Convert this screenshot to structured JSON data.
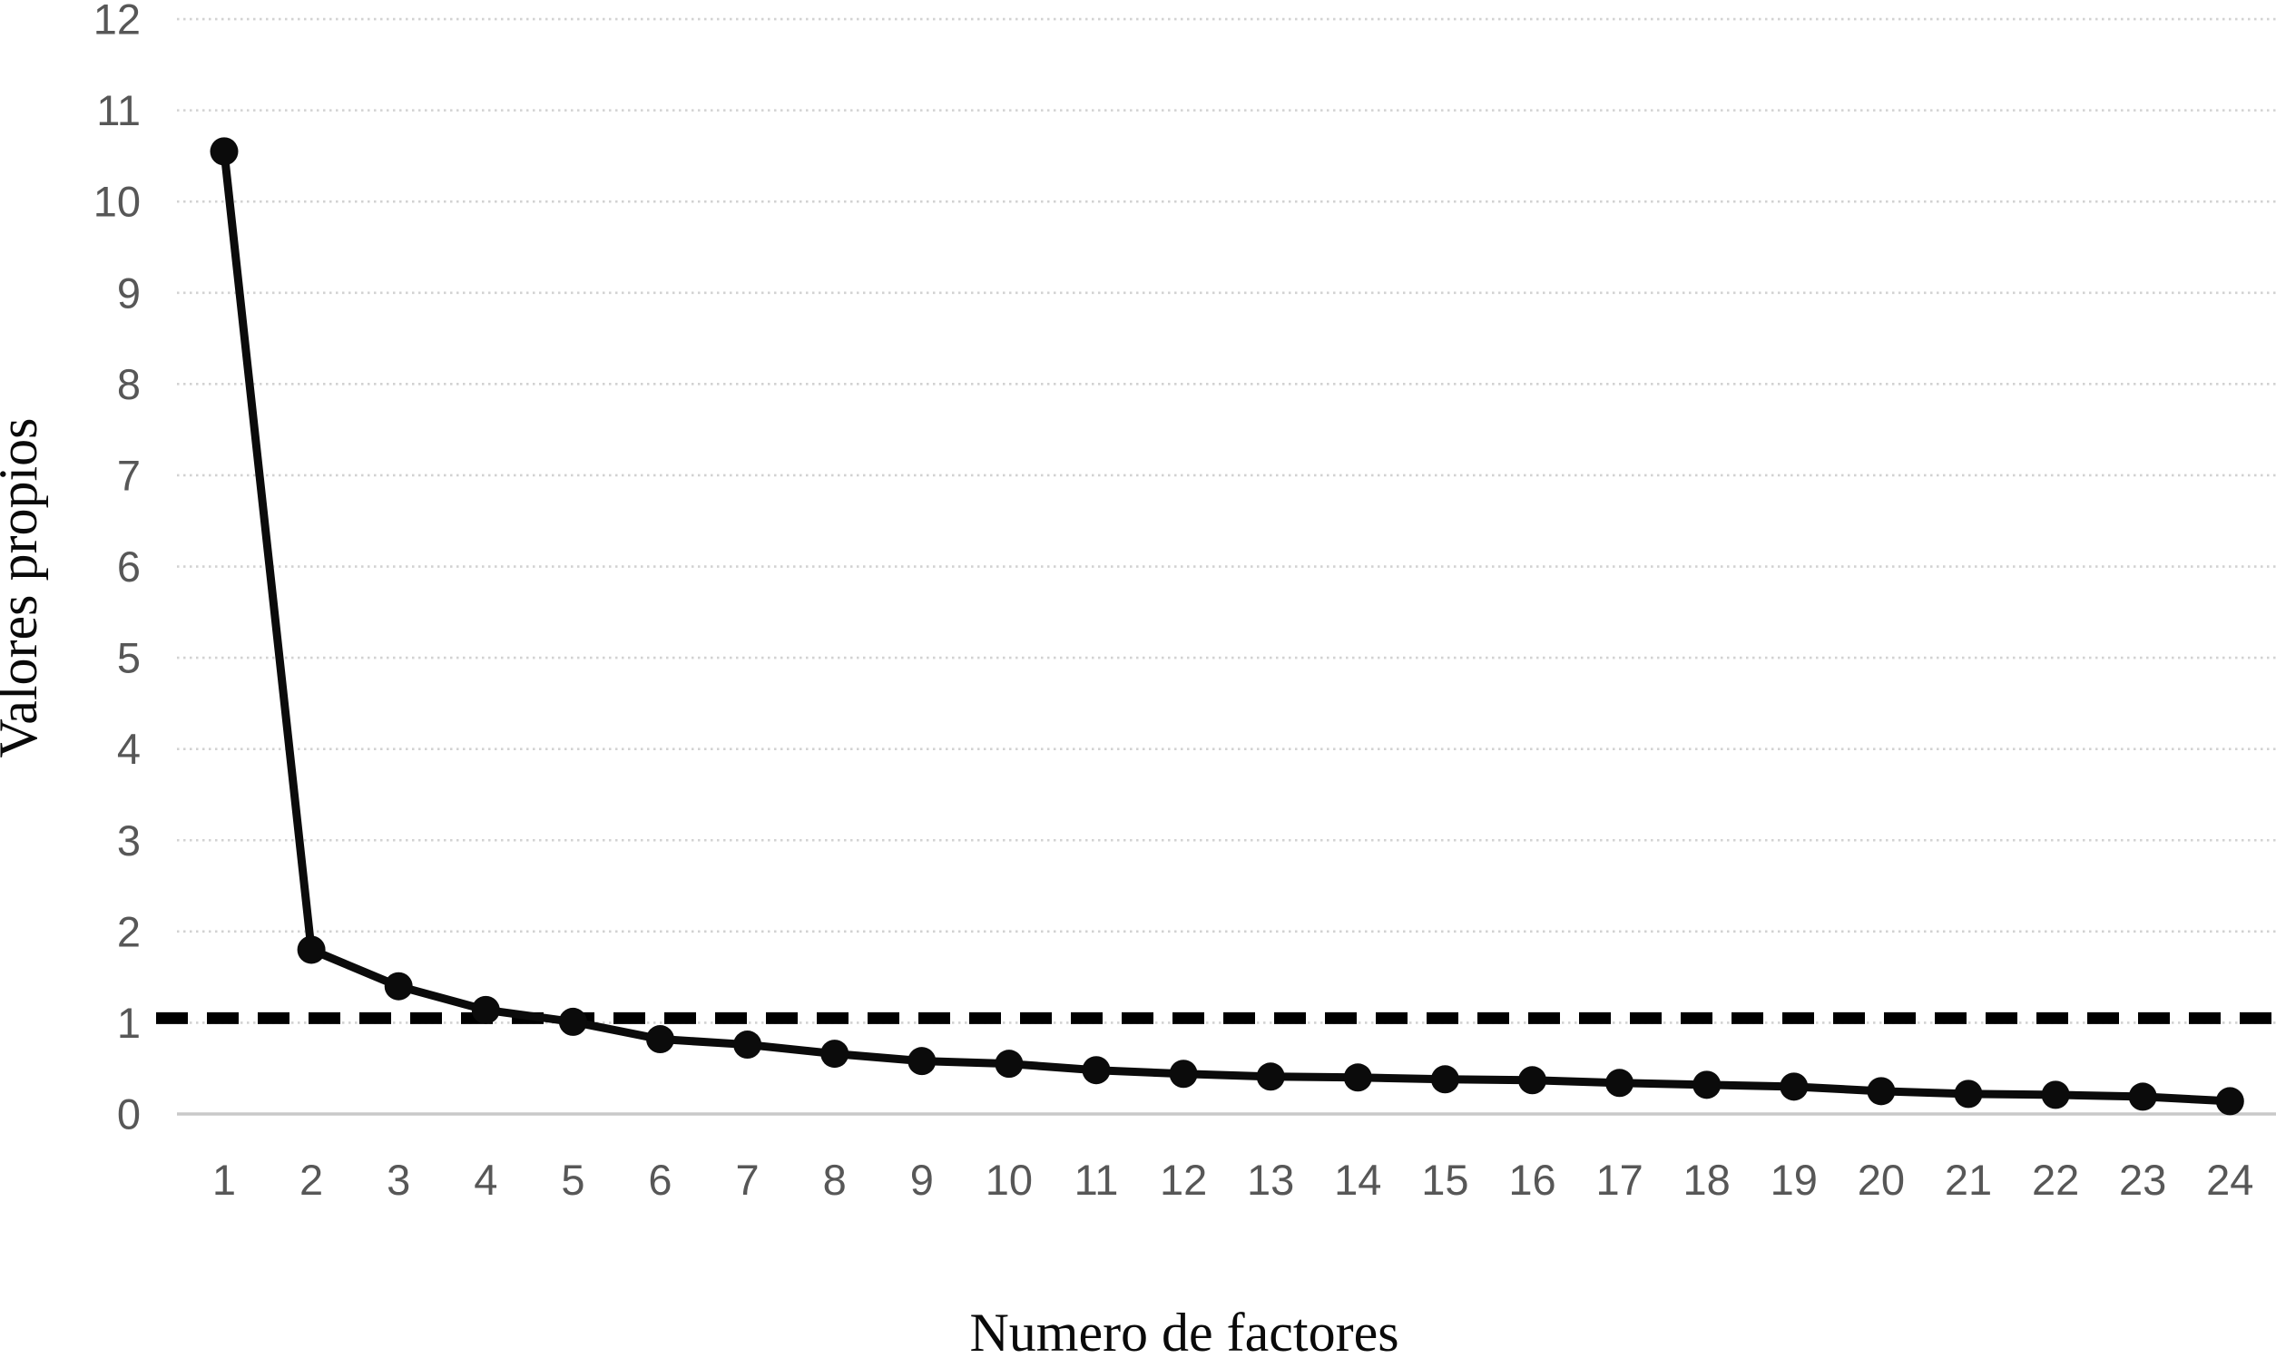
{
  "figure": {
    "background_color": "#ffffff",
    "tick_label_color": "#575757",
    "grid_color": "#d2d2d2",
    "line_color": "#0b0b0b"
  },
  "chart_data": {
    "type": "line",
    "xlabel": "Numero de factores",
    "ylabel": "Valores propios",
    "x": [
      1,
      2,
      3,
      4,
      5,
      6,
      7,
      8,
      9,
      10,
      11,
      12,
      13,
      14,
      15,
      16,
      17,
      18,
      19,
      20,
      21,
      22,
      23,
      24
    ],
    "series": [
      {
        "name": "Valores propios",
        "values": [
          10.55,
          1.8,
          1.4,
          1.14,
          1.01,
          0.82,
          0.76,
          0.66,
          0.58,
          0.55,
          0.48,
          0.44,
          0.41,
          0.4,
          0.38,
          0.37,
          0.34,
          0.32,
          0.3,
          0.25,
          0.22,
          0.21,
          0.19,
          0.14
        ]
      }
    ],
    "reference_line": {
      "value": 1.05,
      "style": "dashed",
      "color": "#000000"
    },
    "ylim": [
      0,
      12
    ],
    "yticks": [
      0,
      1,
      2,
      3,
      4,
      5,
      6,
      7,
      8,
      9,
      10,
      11,
      12
    ],
    "xticks": [
      1,
      2,
      3,
      4,
      5,
      6,
      7,
      8,
      9,
      10,
      11,
      12,
      13,
      14,
      15,
      16,
      17,
      18,
      19,
      20,
      21,
      22,
      23,
      24
    ],
    "grid": "horizontal-dotted",
    "legend": "none",
    "marker": "circle"
  }
}
